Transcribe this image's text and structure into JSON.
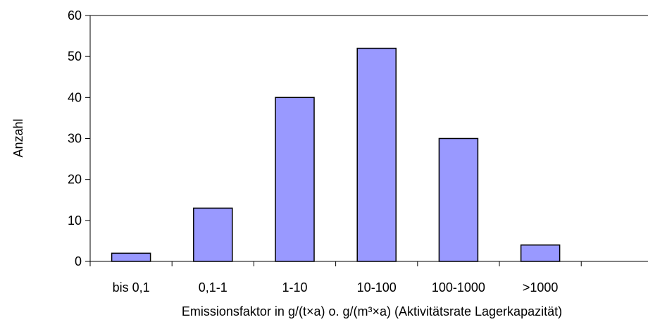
{
  "chart_data": {
    "type": "bar",
    "title": "",
    "xlabel": "Emissionsfaktor in g/(t×a) o. g/(m³×a) (Aktivitätsrate Lagerkapazität)",
    "ylabel": "Anzahl",
    "categories": [
      "bis 0,1",
      "0,1-1",
      "1-10",
      "10-100",
      "100-1000",
      ">1000"
    ],
    "values": [
      2,
      13,
      40,
      52,
      30,
      4
    ],
    "ylim": [
      0,
      60
    ],
    "yticks": [
      "0",
      "10",
      "20",
      "30",
      "40",
      "50",
      "60"
    ],
    "grid": false,
    "legend": "none",
    "colors": {
      "bar_fill": "#9999ff",
      "bar_stroke": "#000000",
      "axis": "#000000"
    }
  }
}
